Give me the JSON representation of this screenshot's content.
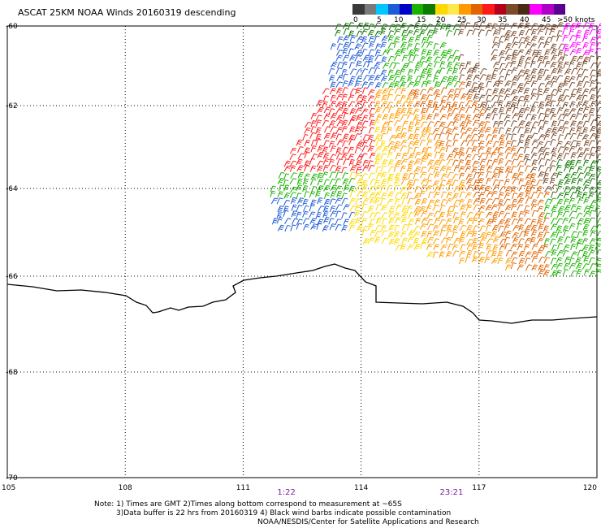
{
  "title": "ASCAT 25KM NOAA Winds 20160319 descending",
  "legend": {
    "colors": [
      "#3a3a3a",
      "#7a7a7a",
      "#00c6ff",
      "#1e5bd6",
      "#0000c8",
      "#1ab200",
      "#0f7a00",
      "#ffd800",
      "#ffe84d",
      "#ff9b00",
      "#e06400",
      "#ff1a1a",
      "#b40018",
      "#7a4a2a",
      "#4a2a14",
      "#ff00ff",
      "#b000c8",
      "#5a0090"
    ],
    "labels": [
      "0",
      "5",
      "10",
      "15",
      "20",
      "25",
      "30",
      "35",
      "40",
      "45",
      ">50 knots"
    ]
  },
  "axes": {
    "x_ticks": [
      "105",
      "108",
      "111",
      "114",
      "117",
      "120"
    ],
    "y_ticks": [
      "-60",
      "-62",
      "-64",
      "-66",
      "-68",
      "-70"
    ],
    "lon_range": [
      105,
      120
    ],
    "lat_range": [
      -70,
      -60
    ]
  },
  "times": [
    {
      "label": "1:22",
      "lon": 112.1
    },
    {
      "label": "23:21",
      "lon": 116.3
    }
  ],
  "notes": [
    "Note: 1) Times are GMT 2)Times along bottom correspond to measurement at ~65S",
    "3)Data buffer is 22 hrs from 20160319 4) Black wind barbs indicate possible contamination",
    "NOAA/NESDIS/Center for Satellite Applications and Research"
  ],
  "map_features": {
    "coastline": "Antarctic coast near -66.5 latitude",
    "gridlines": "dotted",
    "wind_barbs": "color-coded by speed in knots; swath covers roughly 111.5E-120E, 60S-66.3S"
  }
}
